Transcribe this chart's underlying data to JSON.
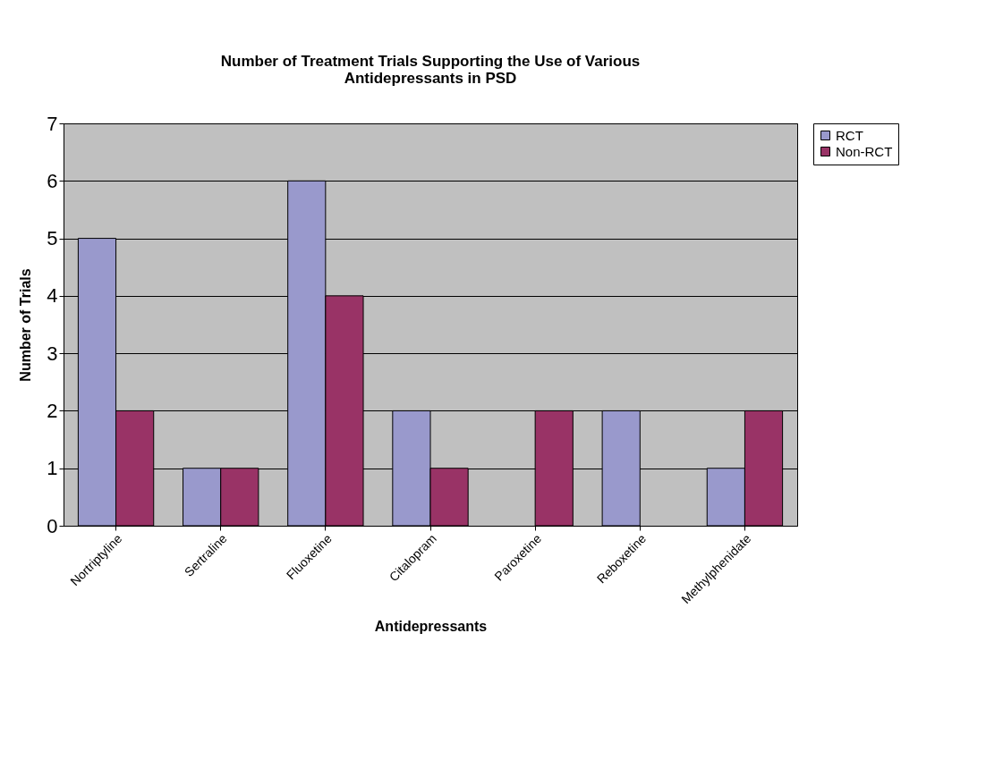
{
  "chart_data": {
    "type": "bar",
    "title": "Number of Treatment Trials Supporting the Use of Various Antidepressants in PSD",
    "xlabel": "Antidepressants",
    "ylabel": "Number of Trials",
    "categories": [
      "Nortriptyline",
      "Sertraline",
      "Fluoxetine",
      "Citalopram",
      "Paroxetine",
      "Reboxetine",
      "Methylphenidate"
    ],
    "series": [
      {
        "name": "RCT",
        "color": "#9999cc",
        "values": [
          5,
          1,
          6,
          2,
          null,
          2,
          1
        ]
      },
      {
        "name": "Non-RCT",
        "color": "#993366",
        "values": [
          2,
          1,
          4,
          1,
          2,
          null,
          2
        ]
      }
    ],
    "ylim": [
      0,
      7
    ],
    "yticks": [
      0,
      1,
      2,
      3,
      4,
      5,
      6,
      7
    ],
    "grid": "y",
    "legend": "right"
  }
}
